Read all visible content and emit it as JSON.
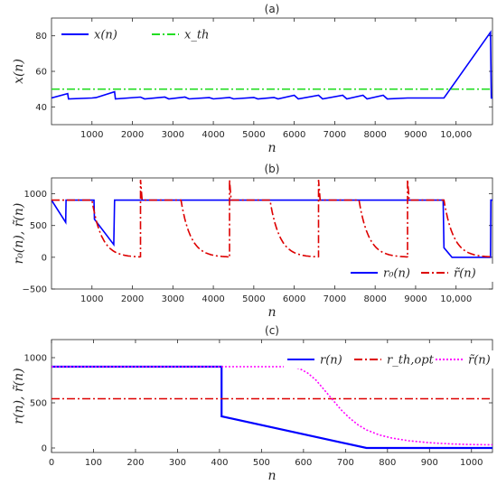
{
  "chart_data": [
    {
      "panel": "a",
      "type": "line",
      "title": "(a)",
      "xlabel": "n",
      "ylabel": "x(n)",
      "xlim": [
        0,
        10900
      ],
      "ylim": [
        30,
        90
      ],
      "xticks": [
        1000,
        2000,
        3000,
        4000,
        5000,
        6000,
        7000,
        8000,
        9000,
        10000
      ],
      "xtick_labels": [
        "1000",
        "2000",
        "3000",
        "4000",
        "5000",
        "6000",
        "7000",
        "8000",
        "9000",
        "10,000"
      ],
      "yticks": [
        40,
        60,
        80
      ],
      "ytick_labels": [
        "40",
        "60",
        "80"
      ],
      "grid": false,
      "legend": "top-left",
      "legend_orientation": "horizontal",
      "series": [
        {
          "name": "x(n)",
          "color": "#0000ff",
          "style": "solid",
          "points": [
            [
              0,
              45
            ],
            [
              400,
              47.5
            ],
            [
              420,
              44.5
            ],
            [
              1000,
              45
            ],
            [
              1100,
              45.2
            ],
            [
              1560,
              48.5
            ],
            [
              1580,
              44.5
            ],
            [
              2200,
              45.5
            ],
            [
              2300,
              44.5
            ],
            [
              2800,
              45.5
            ],
            [
              2900,
              44.5
            ],
            [
              3300,
              45.5
            ],
            [
              3400,
              44.5
            ],
            [
              3900,
              45.2
            ],
            [
              4000,
              44.5
            ],
            [
              4400,
              45.3
            ],
            [
              4500,
              44.5
            ],
            [
              5000,
              45.3
            ],
            [
              5100,
              44.5
            ],
            [
              5500,
              45.3
            ],
            [
              5600,
              44.5
            ],
            [
              6000,
              46.5
            ],
            [
              6100,
              44.5
            ],
            [
              6600,
              46.5
            ],
            [
              6700,
              44.5
            ],
            [
              7200,
              46.5
            ],
            [
              7300,
              44.5
            ],
            [
              7700,
              46.5
            ],
            [
              7800,
              44.5
            ],
            [
              8200,
              46.5
            ],
            [
              8300,
              44.5
            ],
            [
              8800,
              45
            ],
            [
              9700,
              45
            ],
            [
              10850,
              82
            ],
            [
              10870,
              45
            ],
            [
              10900,
              45
            ]
          ]
        },
        {
          "name": "x_th",
          "color": "#22dd22",
          "style": "dashdot",
          "points": [
            [
              0,
              50
            ],
            [
              10900,
              50
            ]
          ]
        }
      ]
    },
    {
      "panel": "b",
      "type": "line",
      "title": "(b)",
      "xlabel": "n",
      "ylabel": "r₀(n), r̃(n)",
      "xlim": [
        0,
        10900
      ],
      "ylim": [
        -500,
        1250
      ],
      "xticks": [
        1000,
        2000,
        3000,
        4000,
        5000,
        6000,
        7000,
        8000,
        9000,
        10000
      ],
      "xtick_labels": [
        "1000",
        "2000",
        "3000",
        "4000",
        "5000",
        "6000",
        "7000",
        "8000",
        "9000",
        "10,000"
      ],
      "yticks": [
        -500,
        0,
        500,
        1000
      ],
      "ytick_labels": [
        "−500",
        "0",
        "500",
        "1000"
      ],
      "grid": false,
      "legend": "bottom-right",
      "legend_orientation": "horizontal",
      "series": [
        {
          "name": "r₀(n)",
          "color": "#0000ff",
          "style": "solid",
          "points": [
            [
              0,
              900
            ],
            [
              350,
              550
            ],
            [
              360,
              900
            ],
            [
              1050,
              900
            ],
            [
              1060,
              600
            ],
            [
              1540,
              200
            ],
            [
              1560,
              900
            ],
            [
              9680,
              900
            ],
            [
              9700,
              150
            ],
            [
              9900,
              0
            ],
            [
              10850,
              0
            ],
            [
              10860,
              900
            ],
            [
              10900,
              900
            ]
          ]
        },
        {
          "name": "r̃(n)",
          "color": "#dd0000",
          "style": "dashdot",
          "decay_curve": true,
          "points": [
            [
              0,
              900
            ],
            [
              1000,
              900
            ],
            [
              1000,
              900
            ],
            [
              2200,
              0
            ],
            [
              2200,
              1220
            ],
            [
              2240,
              900
            ],
            [
              3200,
              900
            ],
            [
              3200,
              900
            ],
            [
              4400,
              0
            ],
            [
              4400,
              1220
            ],
            [
              4440,
              900
            ],
            [
              5400,
              900
            ],
            [
              5400,
              900
            ],
            [
              6600,
              0
            ],
            [
              6600,
              1220
            ],
            [
              6640,
              900
            ],
            [
              7600,
              900
            ],
            [
              7600,
              900
            ],
            [
              8800,
              0
            ],
            [
              8800,
              1220
            ],
            [
              8840,
              900
            ],
            [
              9700,
              900
            ],
            [
              9700,
              900
            ],
            [
              10900,
              0
            ]
          ]
        }
      ]
    },
    {
      "panel": "c",
      "type": "line",
      "title": "(c)",
      "xlabel": "n",
      "ylabel": "r(n), r̃(n)",
      "xlim": [
        0,
        1050
      ],
      "ylim": [
        -50,
        1200
      ],
      "xticks": [
        0,
        100,
        200,
        300,
        400,
        500,
        600,
        700,
        800,
        900,
        1000
      ],
      "xtick_labels": [
        "0",
        "100",
        "200",
        "300",
        "400",
        "500",
        "600",
        "700",
        "800",
        "900",
        "1000"
      ],
      "yticks": [
        0,
        500,
        1000
      ],
      "ytick_labels": [
        "0",
        "500",
        "1000"
      ],
      "grid": false,
      "legend": "top-right",
      "legend_orientation": "horizontal",
      "series": [
        {
          "name": "r(n)",
          "color": "#0000ff",
          "style": "solid",
          "points": [
            [
              0,
              900
            ],
            [
              405,
              900
            ],
            [
              405,
              350
            ],
            [
              750,
              0
            ],
            [
              1050,
              0
            ]
          ]
        },
        {
          "name": "r_th,opt",
          "color": "#dd0000",
          "style": "dashdot",
          "points": [
            [
              0,
              545
            ],
            [
              1050,
              545
            ]
          ]
        },
        {
          "name": "r̃(n)",
          "color": "#ff00ff",
          "style": "dotted",
          "points": [
            [
              0,
              900
            ],
            [
              570,
              900
            ],
            [
              590,
              880
            ],
            [
              610,
              830
            ],
            [
              630,
              750
            ],
            [
              650,
              640
            ],
            [
              670,
              530
            ],
            [
              690,
              420
            ],
            [
              710,
              330
            ],
            [
              730,
              255
            ],
            [
              750,
              200
            ],
            [
              780,
              145
            ],
            [
              810,
              110
            ],
            [
              850,
              80
            ],
            [
              900,
              58
            ],
            [
              950,
              45
            ],
            [
              1000,
              38
            ],
            [
              1050,
              35
            ]
          ]
        }
      ]
    }
  ]
}
